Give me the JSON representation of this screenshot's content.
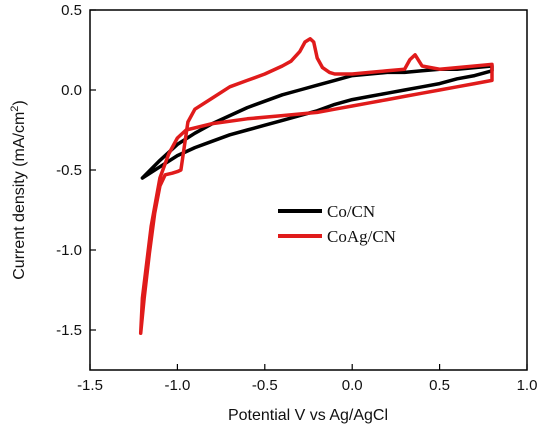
{
  "chart_data": {
    "type": "line",
    "xlabel": "Potential V vs Ag/AgCl",
    "ylabel_main": "Current density (mA/cm",
    "ylabel_sup": "2",
    "ylabel_tail": ")",
    "xlim": [
      -1.5,
      1.0
    ],
    "ylim": [
      -1.75,
      0.5
    ],
    "xticks": [
      -1.5,
      -1.0,
      -0.5,
      0.0,
      0.5,
      1.0
    ],
    "xtick_labels": [
      "-1.5",
      "-1.0",
      "-0.5",
      "0.0",
      "0.5",
      "1.0"
    ],
    "yticks": [
      -1.5,
      -1.0,
      -0.5,
      0.0,
      0.5
    ],
    "ytick_labels": [
      "-1.5",
      "-1.0",
      "-0.5",
      "0.0",
      "0.5"
    ],
    "grid": false,
    "legend_position": "center-right",
    "series": [
      {
        "name": "Co/CN",
        "color": "#000000",
        "x": [
          -1.2,
          -1.1,
          -1.0,
          -0.9,
          -0.8,
          -0.7,
          -0.6,
          -0.5,
          -0.4,
          -0.3,
          -0.2,
          -0.1,
          0.0,
          0.1,
          0.2,
          0.3,
          0.4,
          0.5,
          0.6,
          0.7,
          0.8,
          0.8,
          0.7,
          0.6,
          0.5,
          0.4,
          0.3,
          0.2,
          0.1,
          0.0,
          -0.1,
          -0.2,
          -0.3,
          -0.4,
          -0.5,
          -0.6,
          -0.7,
          -0.8,
          -0.9,
          -1.0,
          -1.1,
          -1.2
        ],
        "y": [
          -0.55,
          -0.48,
          -0.41,
          -0.36,
          -0.32,
          -0.28,
          -0.25,
          -0.22,
          -0.19,
          -0.16,
          -0.13,
          -0.09,
          -0.06,
          -0.04,
          -0.02,
          0.0,
          0.02,
          0.04,
          0.07,
          0.09,
          0.12,
          0.15,
          0.14,
          0.13,
          0.13,
          0.12,
          0.11,
          0.11,
          0.1,
          0.09,
          0.06,
          0.03,
          0.0,
          -0.03,
          -0.07,
          -0.11,
          -0.16,
          -0.21,
          -0.27,
          -0.34,
          -0.44,
          -0.55
        ]
      },
      {
        "name": "CoAg/CN",
        "color": "#e01b1b",
        "x": [
          -1.21,
          -1.19,
          -1.16,
          -1.13,
          -1.1,
          -1.07,
          -1.03,
          -1.0,
          -0.98,
          -0.96,
          -0.94,
          -0.9,
          -0.8,
          -0.7,
          -0.6,
          -0.5,
          -0.4,
          -0.35,
          -0.3,
          -0.27,
          -0.24,
          -0.22,
          -0.2,
          -0.17,
          -0.13,
          -0.1,
          0.0,
          0.1,
          0.2,
          0.3,
          0.33,
          0.36,
          0.4,
          0.5,
          0.6,
          0.7,
          0.8,
          0.8,
          0.7,
          0.6,
          0.5,
          0.4,
          0.3,
          0.2,
          0.1,
          0.0,
          -0.1,
          -0.2,
          -0.4,
          -0.6,
          -0.8,
          -0.95,
          -1.0,
          -1.05,
          -1.1,
          -1.15,
          -1.2,
          -1.21
        ],
        "y": [
          -1.52,
          -1.3,
          -1.02,
          -0.77,
          -0.6,
          -0.53,
          -0.52,
          -0.51,
          -0.5,
          -0.35,
          -0.2,
          -0.12,
          -0.05,
          0.02,
          0.06,
          0.1,
          0.15,
          0.18,
          0.24,
          0.3,
          0.32,
          0.3,
          0.2,
          0.14,
          0.11,
          0.1,
          0.1,
          0.11,
          0.12,
          0.13,
          0.19,
          0.22,
          0.15,
          0.13,
          0.14,
          0.15,
          0.16,
          0.06,
          0.04,
          0.02,
          0.0,
          -0.02,
          -0.04,
          -0.06,
          -0.08,
          -0.1,
          -0.12,
          -0.14,
          -0.16,
          -0.18,
          -0.21,
          -0.25,
          -0.3,
          -0.4,
          -0.55,
          -0.85,
          -1.3,
          -1.52
        ]
      }
    ]
  }
}
